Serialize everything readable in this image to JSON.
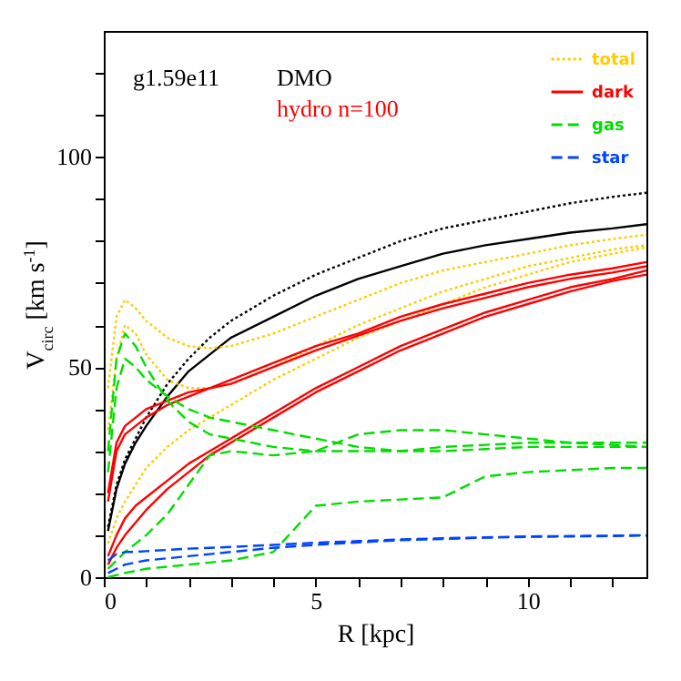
{
  "chart_data": {
    "type": "line",
    "xlabel": "R [kpc]",
    "ylabel": "V$_{circ}$ [km s$^{-1}$]",
    "annotations": [
      "g1.59e11",
      "DMO",
      "hydro n=100"
    ],
    "x": [
      0.1,
      0.3,
      0.5,
      0.75,
      1,
      1.5,
      2,
      2.5,
      3,
      4,
      5,
      6,
      7,
      8,
      9,
      10,
      11,
      12,
      12.8
    ],
    "xlim": [
      0,
      12.8
    ],
    "xticks": [
      0,
      {
        "value": 1,
        "label": null
      },
      {
        "value": 2,
        "label": null
      },
      {
        "value": 3,
        "label": null
      },
      {
        "value": 4,
        "label": null
      },
      5,
      {
        "value": 6,
        "label": null
      },
      {
        "value": 7,
        "label": null
      },
      {
        "value": 8,
        "label": null
      },
      {
        "value": 9,
        "label": null
      },
      10,
      {
        "value": 11,
        "label": null
      },
      {
        "value": 12,
        "label": null
      }
    ],
    "ylim": [
      0,
      130
    ],
    "yticks": [
      0,
      {
        "value": 10,
        "label": null
      },
      {
        "value": 20,
        "label": null
      },
      {
        "value": 30,
        "label": null
      },
      {
        "value": 40,
        "label": null
      },
      50,
      {
        "value": 60,
        "label": null
      },
      {
        "value": 70,
        "label": null
      },
      {
        "value": 80,
        "label": null
      },
      {
        "value": 90,
        "label": null
      },
      100,
      {
        "value": 110,
        "label": null
      },
      {
        "value": 120,
        "label": null
      }
    ],
    "grid": false,
    "legend": "top right",
    "series": [
      {
        "color": "#000000",
        "line_style": "dotted",
        "values": [
          12,
          22,
          28,
          33,
          38,
          46,
          52,
          57,
          61,
          67,
          72,
          76,
          80,
          83,
          85,
          87,
          89,
          90.5,
          91.5
        ]
      },
      {
        "color": "#000000",
        "line_style": "solid",
        "values": [
          11,
          21,
          27,
          32,
          36,
          43,
          49,
          53,
          57,
          62,
          67,
          71,
          74,
          77,
          79,
          80.5,
          82,
          83,
          84
        ]
      },
      {
        "name": "total",
        "color": "#ffcc00",
        "line_style": "dotted",
        "values": [
          45,
          62,
          66,
          64,
          61,
          57,
          55,
          54.5,
          55,
          58,
          62,
          66,
          70,
          73,
          75,
          77,
          79,
          80.5,
          81.5
        ]
      },
      {
        "color": "#ffcc00",
        "line_style": "dotted",
        "values": [
          35,
          52,
          60,
          58,
          53,
          47,
          45,
          45,
          46,
          50,
          55,
          60,
          64,
          68,
          71,
          74,
          76,
          78,
          79
        ]
      },
      {
        "color": "#ffcc00",
        "line_style": "dotted",
        "values": [
          8,
          14,
          18,
          22,
          26,
          31,
          35,
          38,
          41,
          47,
          52,
          57,
          61,
          65,
          69,
          72,
          75,
          77,
          78.5
        ]
      },
      {
        "name": "dark",
        "color": "#ff0000",
        "line_style": "solid",
        "values": [
          20,
          32,
          36,
          38,
          40,
          42,
          44,
          45,
          47,
          51,
          55,
          58,
          62,
          65,
          67.5,
          70,
          72,
          73.5,
          75
        ]
      },
      {
        "color": "#ff0000",
        "line_style": "solid",
        "values": [
          18,
          30,
          34,
          36,
          38,
          41,
          43,
          45,
          46,
          50,
          54,
          57.5,
          61,
          64,
          66.5,
          69,
          71,
          72.5,
          74
        ]
      },
      {
        "color": "#ff0000",
        "line_style": "solid",
        "values": [
          5,
          10,
          14,
          17,
          19,
          23,
          27,
          30,
          33,
          39,
          45,
          50,
          55,
          59,
          63,
          66,
          69,
          71,
          73
        ]
      },
      {
        "color": "#ff0000",
        "line_style": "solid",
        "values": [
          3,
          7,
          10,
          13,
          16,
          21,
          25,
          29,
          32,
          38,
          44,
          49,
          54,
          58,
          62,
          65,
          68,
          70.5,
          72
        ]
      },
      {
        "name": "gas",
        "color": "#00dd00",
        "line_style": "dashed",
        "values": [
          30,
          52,
          58,
          55,
          50,
          42,
          37,
          34,
          33,
          31,
          30,
          30,
          30,
          31,
          31.5,
          32,
          32,
          32,
          32
        ]
      },
      {
        "color": "#00dd00",
        "line_style": "dashed",
        "values": [
          25,
          45,
          52,
          50,
          47,
          43,
          40,
          38,
          37,
          35,
          33,
          31,
          30,
          30,
          30.5,
          31,
          31,
          31,
          31
        ]
      },
      {
        "color": "#00dd00",
        "line_style": "dashed",
        "values": [
          2,
          4,
          6,
          8,
          10,
          15,
          22,
          29,
          30,
          29,
          30,
          34,
          35,
          35,
          34,
          33,
          32,
          31.5,
          31
        ]
      },
      {
        "color": "#00dd00",
        "line_style": "dashed",
        "values": [
          0,
          0.5,
          1,
          1.5,
          2,
          2.5,
          3,
          3.5,
          4,
          6,
          17,
          18,
          18.5,
          19,
          24,
          25,
          25.5,
          26,
          26
        ]
      },
      {
        "name": "star",
        "color": "#0044ff",
        "line_style": "dashed",
        "values": [
          4,
          5.5,
          6,
          6,
          6.2,
          6.5,
          6.8,
          7,
          7.2,
          7.7,
          8.2,
          8.6,
          9,
          9.3,
          9.5,
          9.7,
          9.8,
          9.9,
          10
        ]
      },
      {
        "color": "#0044ff",
        "line_style": "dashed",
        "values": [
          1,
          2,
          3,
          3.5,
          4,
          4.5,
          5,
          5.5,
          6,
          7,
          7.7,
          8.3,
          8.8,
          9.1,
          9.4,
          9.6,
          9.7,
          9.8,
          9.9
        ]
      }
    ]
  }
}
